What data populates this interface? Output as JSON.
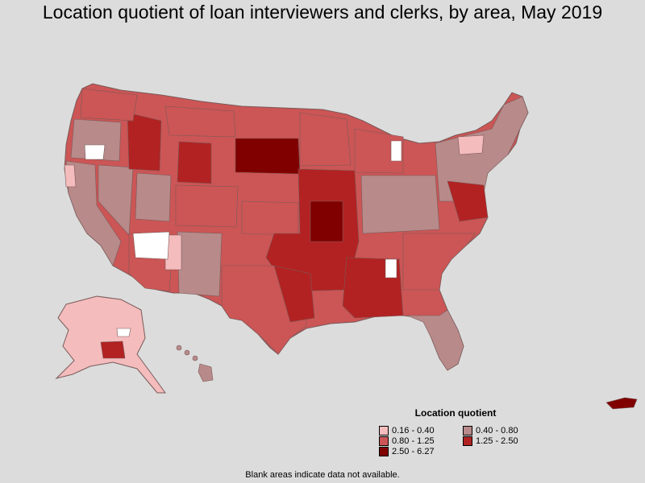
{
  "title": "Location quotient of loan interviewers and clerks, by area, May 2019",
  "legend": {
    "title": "Location quotient",
    "items": [
      {
        "label": "0.16 - 0.40",
        "color": "#f4bcbc"
      },
      {
        "label": "0.40 - 0.80",
        "color": "#b88a8a"
      },
      {
        "label": "0.80 - 1.25",
        "color": "#cc5555"
      },
      {
        "label": "1.25 - 2.50",
        "color": "#b22222"
      },
      {
        "label": "2.50 - 6.27",
        "color": "#800000"
      }
    ]
  },
  "footnote": "Blank areas indicate data not available."
}
